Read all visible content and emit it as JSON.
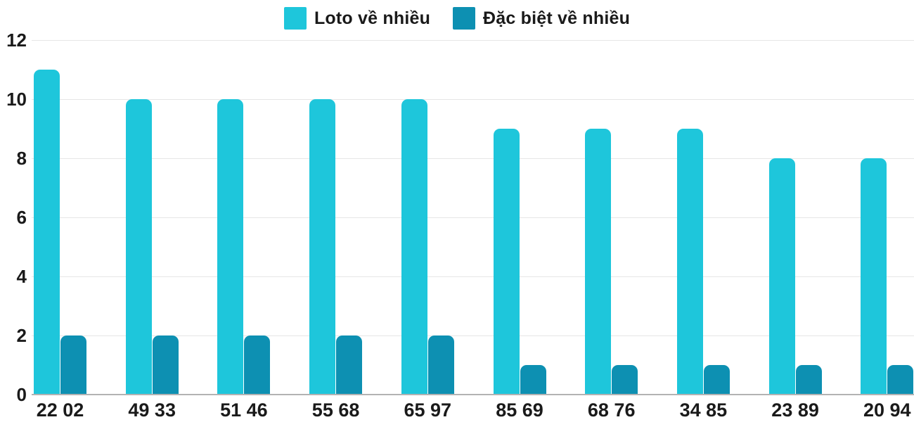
{
  "chart_data": {
    "type": "bar",
    "categories": [
      "22 02",
      "49 33",
      "51 46",
      "55 68",
      "65 97",
      "85 69",
      "68 76",
      "34 85",
      "23 89",
      "20 94"
    ],
    "series": [
      {
        "name": "Loto về nhiều",
        "color": "#1EC6DB",
        "values": [
          11,
          10,
          10,
          10,
          10,
          9,
          9,
          9,
          8,
          8
        ]
      },
      {
        "name": "Đặc biệt về nhiều",
        "color": "#0D90B2",
        "values": [
          2,
          2,
          2,
          2,
          2,
          1,
          1,
          1,
          1,
          1
        ]
      }
    ],
    "title": "",
    "xlabel": "",
    "ylabel": "",
    "ylim": [
      0,
      12
    ],
    "yticks": [
      0,
      2,
      4,
      6,
      8,
      10,
      12
    ],
    "grid": "horizontal",
    "legend_position": "top",
    "colors": {
      "gridline": "#e6e6e6",
      "axis_line": "#b3b3b3",
      "text": "#1a1a1a",
      "background": "#ffffff"
    }
  }
}
